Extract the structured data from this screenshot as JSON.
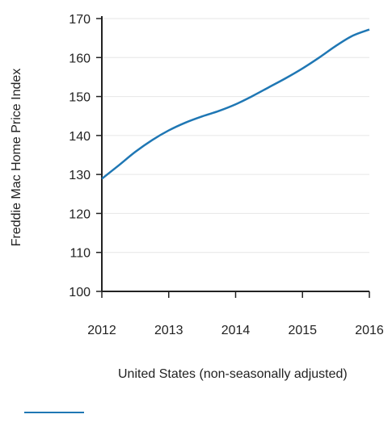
{
  "chart_data": {
    "type": "line",
    "title": "",
    "xlabel": "",
    "ylabel": "Freddie Mac Home Price Index",
    "xlim": [
      2012,
      2016
    ],
    "ylim": [
      100,
      170
    ],
    "x_ticks": [
      "2012",
      "2013",
      "2014",
      "2015",
      "2016"
    ],
    "y_ticks": [
      "100",
      "110",
      "120",
      "130",
      "140",
      "150",
      "160",
      "170"
    ],
    "grid": "horizontal",
    "legend_position": "bottom",
    "series": [
      {
        "name": "United States (non-seasonally adjusted)",
        "color": "#1f77b4",
        "x": [
          2012.0,
          2012.25,
          2012.5,
          2012.75,
          2013.0,
          2013.25,
          2013.5,
          2013.75,
          2014.0,
          2014.25,
          2014.5,
          2014.75,
          2015.0,
          2015.25,
          2015.5,
          2015.75,
          2016.0
        ],
        "y": [
          128.9,
          132.3,
          135.8,
          138.8,
          141.3,
          143.3,
          144.9,
          146.3,
          148.0,
          150.1,
          152.4,
          154.7,
          157.2,
          160.0,
          163.0,
          165.6,
          167.2
        ]
      }
    ]
  }
}
